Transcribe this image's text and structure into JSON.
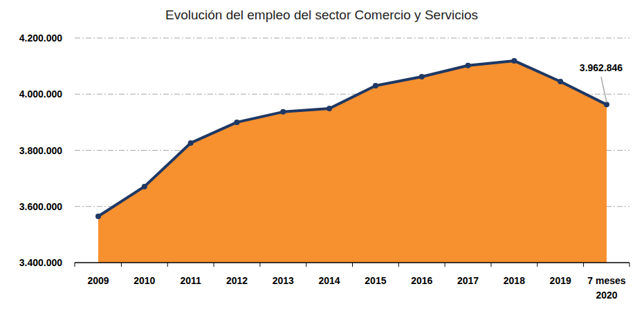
{
  "chart_data": {
    "type": "area",
    "title": "Evolución del empleo del sector Comercio y Servicios",
    "categories": [
      "2009",
      "2010",
      "2011",
      "2012",
      "2013",
      "2014",
      "2015",
      "2016",
      "2017",
      "2018",
      "2019",
      "7 meses\n2020"
    ],
    "values": [
      3565000,
      3671000,
      3826000,
      3900000,
      3937000,
      3949000,
      4030000,
      4062000,
      4102000,
      4119000,
      4045000,
      3962846
    ],
    "value_labels": [
      null,
      null,
      null,
      null,
      null,
      null,
      null,
      null,
      null,
      null,
      null,
      "3.962.846"
    ],
    "data_labels": true,
    "color": "#f7902f",
    "line_color": "#1f3864",
    "marker": "circle",
    "ylim": [
      3400000,
      4200000
    ],
    "yticks": [
      {
        "value": 3400000,
        "label": "3.400.000"
      },
      {
        "value": 3600000,
        "label": "3.600.000"
      },
      {
        "value": 3800000,
        "label": "3.800.000"
      },
      {
        "value": 4000000,
        "label": "4.000.000"
      },
      {
        "value": 4200000,
        "label": "4.200.000"
      }
    ],
    "grid": true
  }
}
